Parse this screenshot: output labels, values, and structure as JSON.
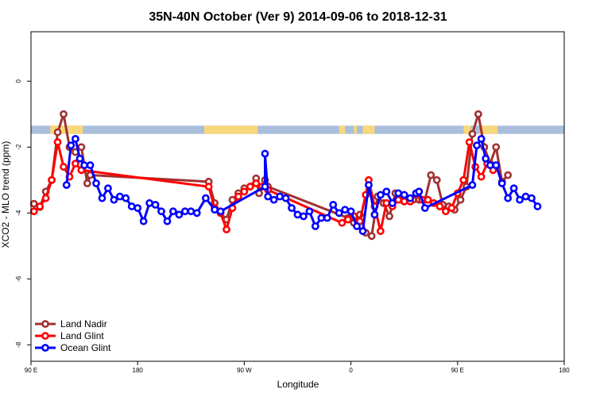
{
  "chart_data": {
    "type": "line",
    "title": "35N-40N October (Ver 9)   2014-09-06 to 2018-12-31",
    "xlabel": "Longitude",
    "ylabel": "XCO2 - MLO trend (ppm)",
    "xlim": [
      0,
      360
    ],
    "ylim": [
      -8.5,
      1.5
    ],
    "x_ticks": [
      {
        "value": 0,
        "label": "90 E"
      },
      {
        "value": 72,
        "label": "180"
      },
      {
        "value": 144,
        "label": "90 W"
      },
      {
        "value": 216,
        "label": "0"
      },
      {
        "value": 288,
        "label": "90 E"
      },
      {
        "value": 360,
        "label": "180"
      }
    ],
    "y_ticks": [
      0,
      -2,
      -4,
      -6,
      -8
    ],
    "grid": false,
    "legend_position": "bottom-left",
    "land_ocean_band": {
      "y_range": [
        -1.6,
        -1.35
      ],
      "ocean_color": "#a9bfdc",
      "land_color": "#f9d77b"
    },
    "series": [
      {
        "name": "Land Nadir",
        "color": "#a03232",
        "points": [
          [
            2,
            -3.72
          ],
          [
            6,
            -3.82
          ],
          [
            10,
            -3.35
          ],
          [
            14,
            -3.0
          ],
          [
            18,
            -1.55
          ],
          [
            22,
            -1.0
          ],
          [
            26,
            -2.0
          ],
          [
            30,
            -2.15
          ],
          [
            34,
            -2.0
          ],
          [
            38,
            -3.1
          ],
          [
            40,
            -2.85
          ],
          [
            120,
            -3.05
          ],
          [
            124,
            -3.7
          ],
          [
            128,
            -4.0
          ],
          [
            132,
            -4.2
          ],
          [
            136,
            -3.6
          ],
          [
            140,
            -3.4
          ],
          [
            144,
            -3.25
          ],
          [
            148,
            -3.2
          ],
          [
            152,
            -2.95
          ],
          [
            154,
            -3.4
          ],
          [
            158,
            -3.0
          ],
          [
            160,
            -3.2
          ],
          [
            214,
            -4.15
          ],
          [
            218,
            -4.3
          ],
          [
            222,
            -4.05
          ],
          [
            226,
            -4.6
          ],
          [
            230,
            -4.7
          ],
          [
            234,
            -3.5
          ],
          [
            238,
            -3.7
          ],
          [
            242,
            -4.1
          ],
          [
            246,
            -3.4
          ],
          [
            250,
            -3.6
          ],
          [
            254,
            -3.55
          ],
          [
            258,
            -3.6
          ],
          [
            262,
            -3.6
          ],
          [
            266,
            -3.6
          ],
          [
            270,
            -2.85
          ],
          [
            274,
            -3.0
          ],
          [
            278,
            -3.75
          ],
          [
            282,
            -3.8
          ],
          [
            286,
            -3.9
          ],
          [
            290,
            -3.6
          ],
          [
            294,
            -3.2
          ],
          [
            298,
            -1.6
          ],
          [
            302,
            -1.0
          ],
          [
            306,
            -2.0
          ],
          [
            310,
            -2.5
          ],
          [
            314,
            -2.0
          ],
          [
            318,
            -3.05
          ],
          [
            322,
            -2.85
          ]
        ]
      },
      {
        "name": "Land Glint",
        "color": "#ff0000",
        "points": [
          [
            2,
            -3.95
          ],
          [
            6,
            -3.8
          ],
          [
            10,
            -3.55
          ],
          [
            14,
            -3.0
          ],
          [
            18,
            -1.85
          ],
          [
            22,
            -2.6
          ],
          [
            26,
            -2.9
          ],
          [
            30,
            -2.5
          ],
          [
            34,
            -2.7
          ],
          [
            120,
            -3.2
          ],
          [
            124,
            -3.85
          ],
          [
            128,
            -4.0
          ],
          [
            132,
            -4.5
          ],
          [
            136,
            -3.85
          ],
          [
            140,
            -3.5
          ],
          [
            144,
            -3.35
          ],
          [
            148,
            -3.2
          ],
          [
            152,
            -3.1
          ],
          [
            156,
            -3.2
          ],
          [
            160,
            -3.3
          ],
          [
            210,
            -4.3
          ],
          [
            214,
            -4.2
          ],
          [
            218,
            -4.1
          ],
          [
            222,
            -4.25
          ],
          [
            226,
            -3.45
          ],
          [
            228,
            -3.0
          ],
          [
            232,
            -3.8
          ],
          [
            236,
            -4.55
          ],
          [
            240,
            -3.7
          ],
          [
            244,
            -3.8
          ],
          [
            248,
            -3.6
          ],
          [
            252,
            -3.65
          ],
          [
            256,
            -3.65
          ],
          [
            260,
            -3.4
          ],
          [
            264,
            -3.6
          ],
          [
            268,
            -3.6
          ],
          [
            272,
            -3.7
          ],
          [
            276,
            -3.8
          ],
          [
            280,
            -3.95
          ],
          [
            284,
            -3.85
          ],
          [
            288,
            -3.4
          ],
          [
            292,
            -3.0
          ],
          [
            296,
            -1.85
          ],
          [
            300,
            -2.6
          ],
          [
            304,
            -2.9
          ],
          [
            308,
            -2.5
          ],
          [
            312,
            -2.7
          ]
        ]
      },
      {
        "name": "Ocean Glint",
        "color": "#0000ff",
        "points": [
          [
            24,
            -3.15
          ],
          [
            27,
            -1.95
          ],
          [
            30,
            -1.75
          ],
          [
            33,
            -2.35
          ],
          [
            36,
            -2.55
          ],
          [
            40,
            -2.55
          ],
          [
            44,
            -3.1
          ],
          [
            48,
            -3.55
          ],
          [
            52,
            -3.25
          ],
          [
            56,
            -3.6
          ],
          [
            60,
            -3.5
          ],
          [
            64,
            -3.55
          ],
          [
            68,
            -3.8
          ],
          [
            72,
            -3.85
          ],
          [
            76,
            -4.25
          ],
          [
            80,
            -3.7
          ],
          [
            84,
            -3.75
          ],
          [
            88,
            -3.95
          ],
          [
            92,
            -4.25
          ],
          [
            96,
            -3.95
          ],
          [
            100,
            -4.05
          ],
          [
            104,
            -3.95
          ],
          [
            108,
            -3.95
          ],
          [
            112,
            -4.0
          ],
          [
            118,
            -3.55
          ],
          [
            124,
            -3.9
          ],
          [
            128,
            -3.95
          ],
          [
            158,
            -3.2
          ],
          [
            158,
            -2.2
          ],
          [
            160,
            -3.5
          ],
          [
            164,
            -3.6
          ],
          [
            168,
            -3.5
          ],
          [
            172,
            -3.55
          ],
          [
            176,
            -3.85
          ],
          [
            180,
            -4.05
          ],
          [
            184,
            -4.1
          ],
          [
            188,
            -3.95
          ],
          [
            192,
            -4.4
          ],
          [
            196,
            -4.15
          ],
          [
            200,
            -4.15
          ],
          [
            204,
            -3.75
          ],
          [
            208,
            -4.0
          ],
          [
            212,
            -3.9
          ],
          [
            216,
            -3.95
          ],
          [
            220,
            -4.4
          ],
          [
            224,
            -4.55
          ],
          [
            228,
            -3.15
          ],
          [
            232,
            -4.05
          ],
          [
            236,
            -3.45
          ],
          [
            240,
            -3.35
          ],
          [
            244,
            -3.7
          ],
          [
            248,
            -3.4
          ],
          [
            252,
            -3.45
          ],
          [
            256,
            -3.55
          ],
          [
            260,
            -3.4
          ],
          [
            262,
            -3.35
          ],
          [
            266,
            -3.85
          ],
          [
            298,
            -3.15
          ],
          [
            301,
            -1.95
          ],
          [
            304,
            -1.75
          ],
          [
            307,
            -2.35
          ],
          [
            310,
            -2.55
          ],
          [
            314,
            -2.55
          ],
          [
            318,
            -3.1
          ],
          [
            322,
            -3.55
          ],
          [
            326,
            -3.25
          ],
          [
            330,
            -3.6
          ],
          [
            334,
            -3.5
          ],
          [
            338,
            -3.55
          ],
          [
            342,
            -3.8
          ]
        ]
      }
    ]
  }
}
